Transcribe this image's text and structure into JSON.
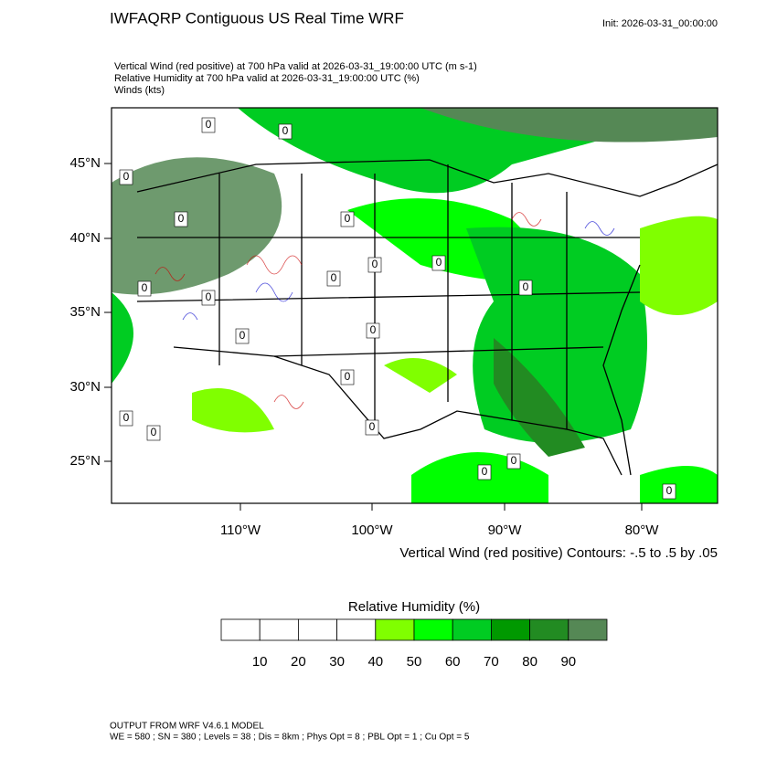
{
  "header": {
    "title": "IWFAQRP Contiguous US Real Time WRF",
    "init": "Init: 2026-03-31_00:00:00",
    "subtitle_lines": [
      "Vertical Wind (red positive) at 700 hPa valid at 2026-03-31_19:00:00 UTC   (m s-1)",
      "Relative Humidity at 700 hPa valid at 2026-03-31_19:00:00 UTC   (%)",
      "Winds   (kts)"
    ]
  },
  "map": {
    "lat_labels": [
      "45°N",
      "40°N",
      "35°N",
      "30°N",
      "25°N"
    ],
    "lon_labels": [
      "110°W",
      "100°W",
      "90°W",
      "80°W"
    ],
    "contour_labels": [
      "0",
      "0",
      "0",
      "0",
      "0",
      "0",
      "0",
      "0",
      "0",
      "0",
      "0",
      "0",
      "0",
      "0",
      "0",
      "0",
      "0",
      "0",
      "0",
      "0"
    ],
    "contour_note": "Vertical Wind (red positive) Contours: -.5 to .5 by .05"
  },
  "colorbar": {
    "title": "Relative Humidity  (%)",
    "colors": [
      "#ffffff",
      "#ffffff",
      "#ffffff",
      "#ffffff",
      "#80ff00",
      "#00ff00",
      "#00cc22",
      "#009900",
      "#228b22",
      "#558855"
    ],
    "ticks": [
      10,
      20,
      30,
      40,
      50,
      60,
      70,
      80,
      90
    ]
  },
  "footer": {
    "lines": [
      "OUTPUT FROM WRF V4.6.1 MODEL",
      "WE = 580 ; SN = 380 ; Levels = 38 ; Dis = 8km ; Phys Opt = 8 ; PBL Opt = 1 ; Cu Opt = 5"
    ]
  }
}
